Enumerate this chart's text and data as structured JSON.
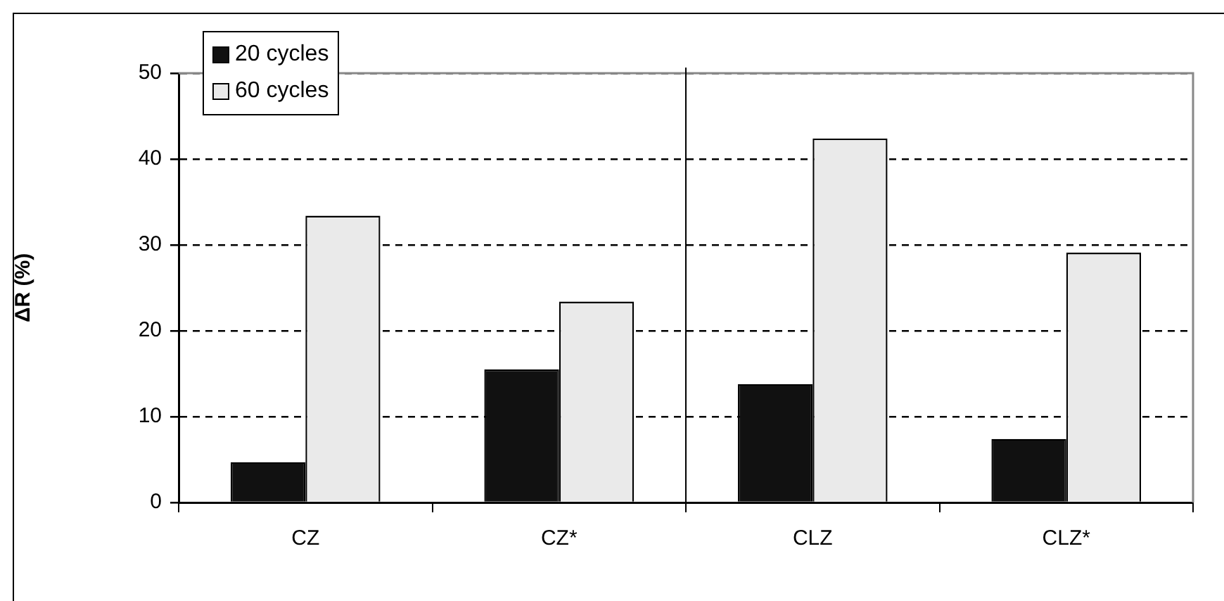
{
  "chart_data": {
    "type": "bar",
    "ylabel": "ΔR (%)",
    "categories": [
      "CZ",
      "CZ*",
      "CLZ",
      "CLZ*"
    ],
    "series": [
      {
        "name": "20 cycles",
        "color": "#111111",
        "values": [
          4.7,
          15.5,
          13.8,
          7.4
        ]
      },
      {
        "name": "60 cycles",
        "color": "#eaeaea",
        "values": [
          33.4,
          23.4,
          42.4,
          29.1
        ]
      }
    ],
    "ylim": [
      0,
      50
    ],
    "yticks": [
      0,
      10,
      20,
      30,
      40,
      50
    ],
    "grid": "y",
    "legend": "top left"
  }
}
